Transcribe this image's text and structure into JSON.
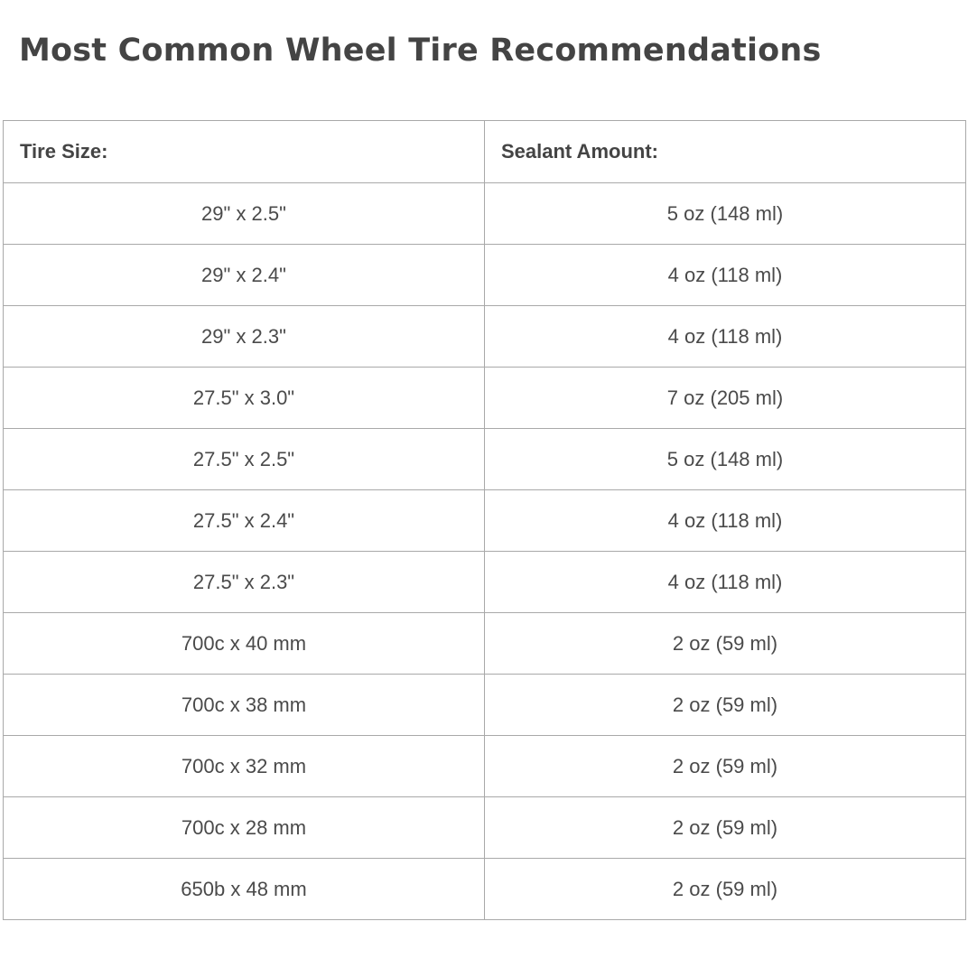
{
  "title": "Most Common Wheel Tire Recommendations",
  "table": {
    "headers": [
      "Tire Size:",
      "Sealant Amount:"
    ],
    "rows": [
      [
        "29\" x 2.5\"",
        "5 oz (148 ml)"
      ],
      [
        "29\" x 2.4\"",
        "4 oz (118 ml)"
      ],
      [
        "29\" x 2.3\"",
        "4 oz (118 ml)"
      ],
      [
        "27.5\" x 3.0\"",
        "7 oz (205 ml)"
      ],
      [
        "27.5\" x 2.5\"",
        "5 oz (148 ml)"
      ],
      [
        "27.5\" x 2.4\"",
        "4 oz (118 ml)"
      ],
      [
        "27.5\" x 2.3\"",
        "4 oz (118 ml)"
      ],
      [
        "700c x 40 mm",
        "2 oz (59 ml)"
      ],
      [
        "700c x 38 mm",
        "2 oz (59 ml)"
      ],
      [
        "700c x 32 mm",
        "2 oz (59 ml)"
      ],
      [
        "700c x 28 mm",
        "2 oz (59 ml)"
      ],
      [
        "650b x 48 mm",
        "2 oz (59 ml)"
      ]
    ]
  }
}
